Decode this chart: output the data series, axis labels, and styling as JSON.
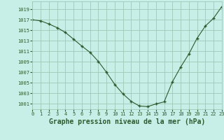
{
  "x": [
    0,
    1,
    2,
    3,
    4,
    5,
    6,
    7,
    8,
    9,
    10,
    11,
    12,
    13,
    14,
    15,
    16,
    17,
    18,
    19,
    20,
    21,
    22,
    23
  ],
  "y": [
    1017.0,
    1016.8,
    1016.2,
    1015.5,
    1014.6,
    1013.3,
    1012.0,
    1010.8,
    1009.1,
    1007.0,
    1004.7,
    1002.9,
    1001.5,
    1000.6,
    1000.5,
    1001.0,
    1001.4,
    1005.2,
    1008.0,
    1010.5,
    1013.5,
    1015.8,
    1017.3,
    1019.5
  ],
  "line_color": "#2d5a2d",
  "marker": "P",
  "marker_size": 3.5,
  "bg_color": "#c8eee8",
  "grid_color": "#a0c8b8",
  "ylabel_ticks": [
    1001,
    1003,
    1005,
    1007,
    1009,
    1011,
    1013,
    1015,
    1017,
    1019
  ],
  "xlabel_label": "Graphe pression niveau de la mer (hPa)",
  "xlim": [
    0,
    23
  ],
  "ylim": [
    1000.0,
    1020.5
  ],
  "tick_color": "#2d5a2d",
  "label_color": "#2d5a2d",
  "tick_fontsize": 5.0,
  "label_fontsize": 7.0
}
